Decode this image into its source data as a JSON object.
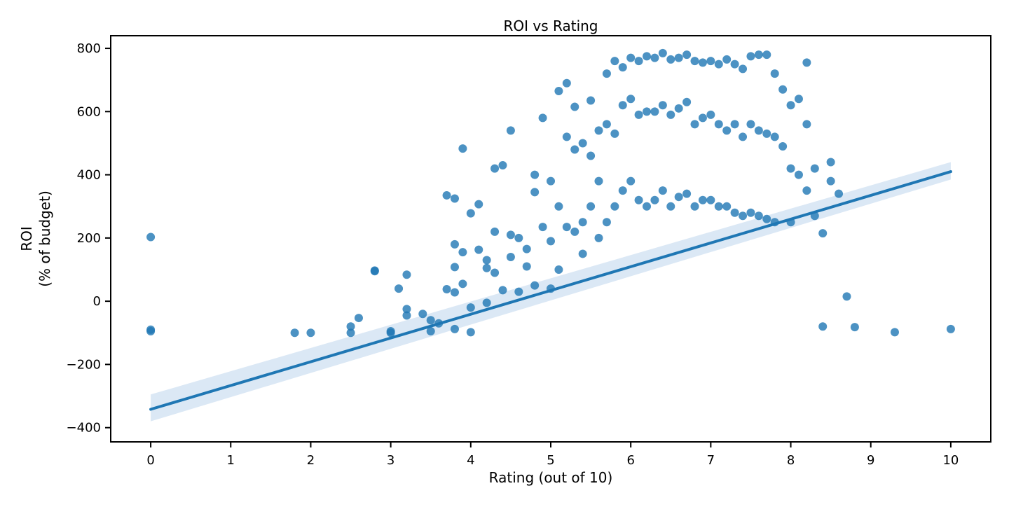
{
  "chart_data": {
    "type": "scatter",
    "title": "ROI vs Rating",
    "xlabel": "Rating (out of 10)",
    "ylabel_lines": [
      "ROI",
      "(% of budget)"
    ],
    "xlim": [
      -0.5,
      10.5
    ],
    "ylim": [
      -445,
      840
    ],
    "x_ticks": [
      0,
      1,
      2,
      3,
      4,
      5,
      6,
      7,
      8,
      9,
      10
    ],
    "x_tick_labels": [
      "0",
      "1",
      "2",
      "3",
      "4",
      "5",
      "6",
      "7",
      "8",
      "9",
      "10"
    ],
    "y_ticks": [
      -400,
      -200,
      0,
      200,
      400,
      600,
      800
    ],
    "y_tick_labels": [
      "−400",
      "−200",
      "0",
      "200",
      "400",
      "600",
      "800"
    ],
    "grid": false,
    "legend": "none",
    "colors": {
      "points": "#1f77b4",
      "line": "#1f77b4",
      "band": "#cfe0f1",
      "axes": "#000000"
    },
    "series": [
      {
        "kind": "points",
        "x": [
          0,
          0,
          0,
          1.8,
          2,
          2.5,
          2.5,
          2.6,
          2.8,
          2.8,
          3,
          3,
          3.1,
          3.2,
          3.2,
          3.2,
          3.4,
          3.5,
          3.5,
          3.6,
          3.7,
          3.7,
          3.8,
          3.8,
          3.8,
          3.8,
          3.8,
          3.9,
          3.9,
          3.9,
          4,
          4,
          4,
          4.1,
          4.1,
          4.2,
          4.2,
          4.2,
          4.3,
          4.3,
          4.3,
          4.4,
          4.4,
          4.5,
          4.5,
          4.5,
          4.6,
          4.6,
          4.7,
          4.7,
          4.8,
          4.8,
          4.8,
          4.9,
          4.9,
          5,
          5,
          5,
          5.1,
          5.1,
          5.1,
          5.2,
          5.2,
          5.2,
          5.3,
          5.3,
          5.3,
          5.4,
          5.4,
          5.4,
          5.5,
          5.5,
          5.5,
          5.6,
          5.6,
          5.6,
          5.7,
          5.7,
          5.7,
          5.8,
          5.8,
          5.8,
          5.9,
          5.9,
          5.9,
          6,
          6,
          6,
          6.1,
          6.1,
          6.1,
          6.2,
          6.2,
          6.2,
          6.3,
          6.3,
          6.3,
          6.4,
          6.4,
          6.4,
          6.5,
          6.5,
          6.5,
          6.6,
          6.6,
          6.6,
          6.7,
          6.7,
          6.7,
          6.8,
          6.8,
          6.8,
          6.9,
          6.9,
          6.9,
          7,
          7,
          7,
          7.1,
          7.1,
          7.1,
          7.2,
          7.2,
          7.2,
          7.3,
          7.3,
          7.3,
          7.4,
          7.4,
          7.4,
          7.5,
          7.5,
          7.5,
          7.6,
          7.6,
          7.6,
          7.7,
          7.7,
          7.7,
          7.8,
          7.8,
          7.8,
          7.9,
          7.9,
          8,
          8,
          8,
          8.1,
          8.1,
          8.2,
          8.2,
          8.2,
          8.3,
          8.3,
          8.4,
          8.4,
          8.5,
          8.5,
          8.6,
          8.7,
          8.8,
          9.3,
          10
        ],
        "y": [
          203,
          -90,
          -95,
          -100,
          -100,
          -80,
          -100,
          -53,
          97,
          95,
          -95,
          -100,
          40,
          84,
          -25,
          -45,
          -40,
          -60,
          -95,
          -70,
          335,
          38,
          325,
          180,
          108,
          28,
          -88,
          483,
          155,
          55,
          278,
          -20,
          -98,
          307,
          163,
          -5,
          130,
          105,
          420,
          220,
          90,
          430,
          35,
          540,
          210,
          140,
          200,
          30,
          165,
          110,
          400,
          345,
          50,
          580,
          235,
          380,
          190,
          40,
          665,
          300,
          100,
          690,
          520,
          235,
          615,
          480,
          220,
          500,
          250,
          150,
          635,
          460,
          300,
          540,
          380,
          200,
          720,
          560,
          250,
          760,
          530,
          300,
          740,
          620,
          350,
          770,
          640,
          380,
          760,
          590,
          320,
          775,
          600,
          300,
          770,
          600,
          320,
          785,
          620,
          350,
          765,
          590,
          300,
          770,
          610,
          330,
          780,
          630,
          340,
          760,
          560,
          300,
          755,
          580,
          320,
          760,
          590,
          320,
          750,
          560,
          300,
          765,
          540,
          300,
          750,
          560,
          280,
          735,
          520,
          270,
          775,
          560,
          280,
          780,
          540,
          270,
          780,
          530,
          260,
          720,
          520,
          250,
          670,
          490,
          620,
          420,
          250,
          640,
          400,
          755,
          560,
          350,
          420,
          270,
          215,
          -80,
          440,
          380,
          340,
          15,
          -82,
          -98,
          -88
        ]
      },
      {
        "kind": "regression-line",
        "x": [
          0,
          10
        ],
        "y": [
          -342,
          410
        ]
      },
      {
        "kind": "confidence-band",
        "x": [
          0,
          10
        ],
        "y_low": [
          -380,
          385
        ],
        "y_high": [
          -295,
          440
        ]
      }
    ]
  }
}
